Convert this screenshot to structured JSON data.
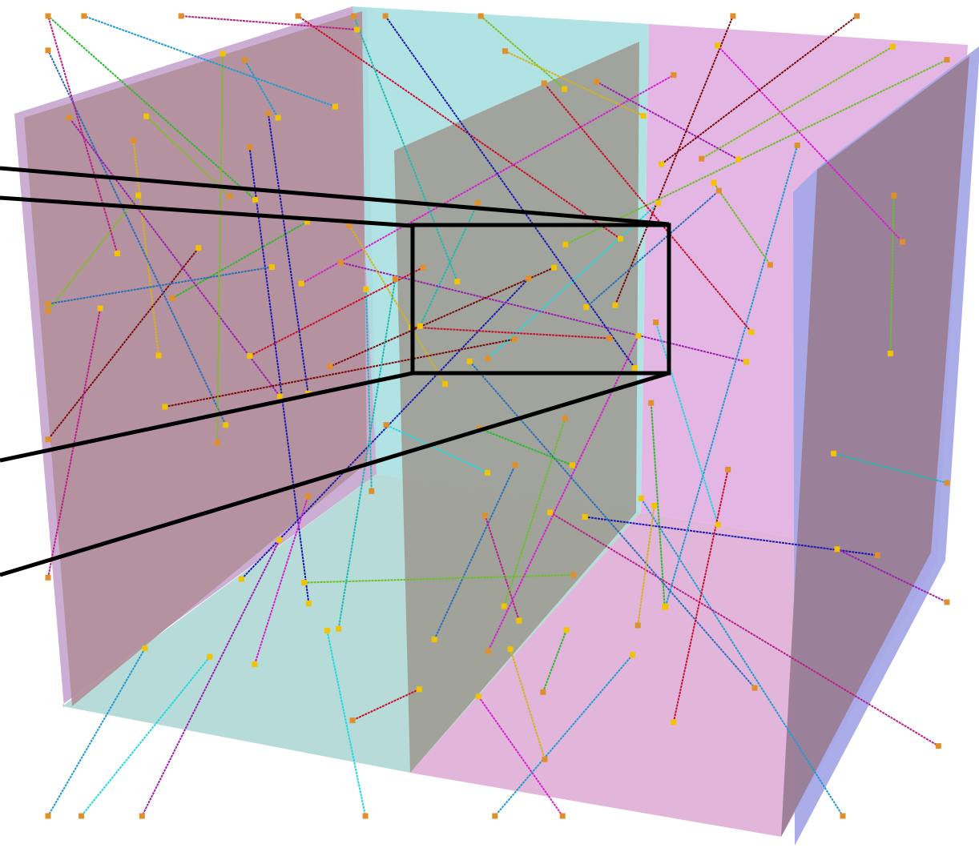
{
  "detector": {
    "colors": {
      "left_panel": "#b38f9a",
      "left_panel_edge": "#c6a4cf",
      "back_left_panel": "#a9e0e2",
      "floor_left": "#b3d9d6",
      "central_panel": "#9e9e96",
      "right_region": "#e2b0dd",
      "right_back_panel": "#e3b2e2",
      "right_panel": "#9a7d96",
      "right_panel_edge": "#a7a9e8",
      "highlight_box": "#000000"
    }
  },
  "tracks": {
    "palette": [
      "#c8102e",
      "#1f9bd0",
      "#2db82d",
      "#9b1fb0",
      "#1a1ab0",
      "#d4b21a",
      "#d81fd0",
      "#1fb8b0",
      "#7a0c0c",
      "#6bbf2a",
      "#2a6fb8",
      "#b81f8a",
      "#7bbf1f",
      "#1fd8e0"
    ],
    "vertex_marker_color": "#f2c300",
    "endpoint_marker_color": "#e0902a",
    "count": 72
  }
}
